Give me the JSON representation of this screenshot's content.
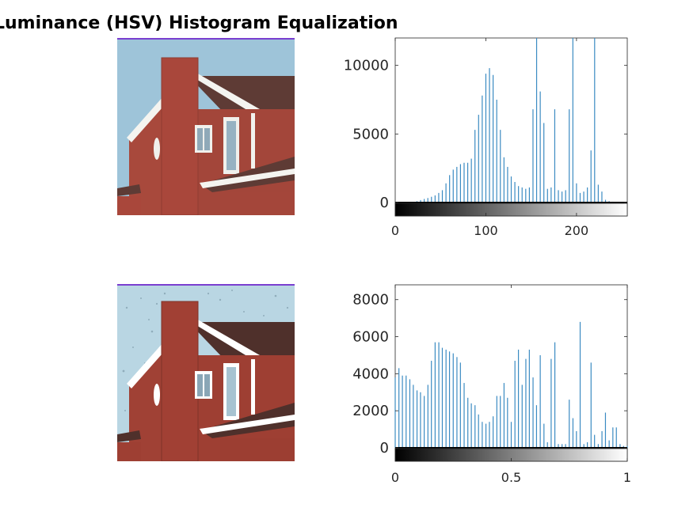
{
  "figure": {
    "title": "Luminance (HSV) Histogram Equalization"
  },
  "colors": {
    "bar": "#3b8bc2",
    "axis": "#262626",
    "sky": "#9cc3d8",
    "brick": "#a9473b",
    "roof": "#5d3a34",
    "trim": "#f2f2f0"
  },
  "chart_data": [
    {
      "type": "bar",
      "title": "",
      "xlabel": "",
      "ylabel": "",
      "xlim": [
        0,
        256
      ],
      "ylim": [
        -1200,
        12000
      ],
      "xticks": [
        0,
        100,
        200
      ],
      "xtick_labels": [
        "0",
        "100",
        "200"
      ],
      "yticks": [
        0,
        5000,
        10000
      ],
      "ytick_labels": [
        "0",
        "5000",
        "10000"
      ],
      "colorbar": "grayscale 0-255",
      "x": [
        24,
        28,
        32,
        36,
        40,
        44,
        48,
        52,
        56,
        60,
        64,
        68,
        72,
        76,
        80,
        84,
        88,
        92,
        96,
        100,
        104,
        108,
        112,
        116,
        120,
        124,
        128,
        132,
        136,
        140,
        144,
        148,
        152,
        156,
        160,
        164,
        168,
        172,
        176,
        180,
        184,
        188,
        192,
        196,
        200,
        204,
        208,
        212,
        216,
        220,
        224,
        228,
        232,
        236,
        240
      ],
      "values": [
        100,
        180,
        260,
        330,
        420,
        520,
        700,
        900,
        1400,
        2000,
        2400,
        2600,
        2800,
        2900,
        2900,
        3200,
        5300,
        6400,
        7800,
        9400,
        9800,
        9300,
        7500,
        5300,
        3300,
        2600,
        1900,
        1500,
        1200,
        1100,
        1000,
        1100,
        6800,
        12000,
        8100,
        5800,
        1000,
        1100,
        6800,
        900,
        800,
        900,
        6800,
        12000,
        1400,
        700,
        800,
        1100,
        3800,
        12000,
        1300,
        800,
        200,
        100,
        60
      ]
    },
    {
      "type": "bar",
      "title": "",
      "xlabel": "",
      "ylabel": "",
      "xlim": [
        0,
        1
      ],
      "ylim": [
        -800,
        8800
      ],
      "xticks": [
        0,
        0.5,
        1
      ],
      "xtick_labels": [
        "0",
        "0.5",
        "1"
      ],
      "yticks": [
        0,
        2000,
        4000,
        6000,
        8000
      ],
      "ytick_labels": [
        "0",
        "2000",
        "4000",
        "6000",
        "8000"
      ],
      "colorbar": "grayscale 0-1",
      "x": [
        0.0,
        0.016,
        0.031,
        0.047,
        0.063,
        0.078,
        0.094,
        0.109,
        0.125,
        0.141,
        0.156,
        0.172,
        0.188,
        0.203,
        0.219,
        0.234,
        0.25,
        0.266,
        0.281,
        0.297,
        0.313,
        0.328,
        0.344,
        0.359,
        0.375,
        0.391,
        0.406,
        0.422,
        0.438,
        0.453,
        0.469,
        0.484,
        0.5,
        0.516,
        0.531,
        0.547,
        0.563,
        0.578,
        0.594,
        0.609,
        0.625,
        0.641,
        0.656,
        0.672,
        0.688,
        0.703,
        0.719,
        0.734,
        0.75,
        0.766,
        0.781,
        0.797,
        0.813,
        0.828,
        0.844,
        0.859,
        0.875,
        0.891,
        0.906,
        0.922,
        0.938,
        0.953,
        0.969,
        0.984,
        1.0
      ],
      "values": [
        3800,
        4300,
        3900,
        3900,
        3700,
        3400,
        3100,
        3000,
        2800,
        3400,
        4700,
        5700,
        5700,
        5400,
        5300,
        5200,
        5100,
        4900,
        4600,
        3500,
        2700,
        2400,
        2300,
        1800,
        1400,
        1300,
        1400,
        1700,
        2800,
        2800,
        3500,
        2700,
        1400,
        4700,
        5300,
        3400,
        4800,
        5300,
        3800,
        2300,
        5000,
        1300,
        300,
        4800,
        5700,
        200,
        200,
        200,
        2600,
        1600,
        900,
        6800,
        200,
        300,
        4600,
        700,
        200,
        900,
        1900,
        400,
        1100,
        1100,
        200,
        100,
        100
      ]
    }
  ]
}
